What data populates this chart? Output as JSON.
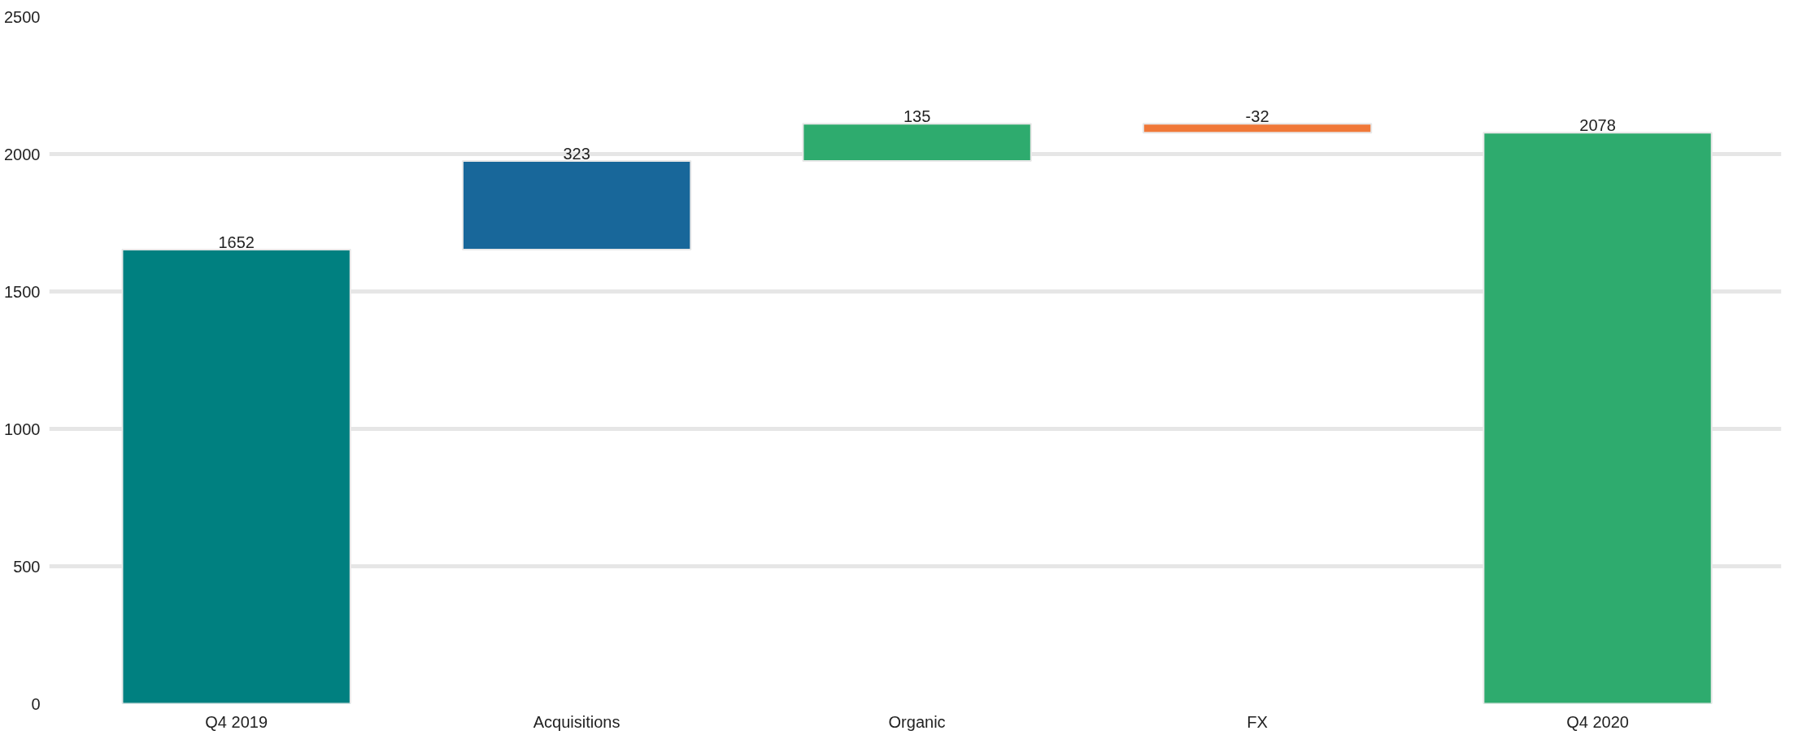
{
  "chart_data": {
    "type": "bar",
    "categories": [
      "Q4 2019",
      "Acquisitions",
      "Organic",
      "FX",
      "Q4 2020"
    ],
    "values": [
      1652,
      323,
      135,
      -32,
      2078
    ],
    "base": [
      0,
      1652,
      1975,
      2110,
      0
    ],
    "colors": [
      "#008080",
      "#18679a",
      "#2eab6e",
      "#f07838",
      "#2eab6e"
    ],
    "ylim": [
      0,
      2500
    ],
    "yticks": [
      0,
      500,
      1000,
      1500,
      2000,
      2500
    ],
    "grid": "y",
    "data_labels": true
  }
}
